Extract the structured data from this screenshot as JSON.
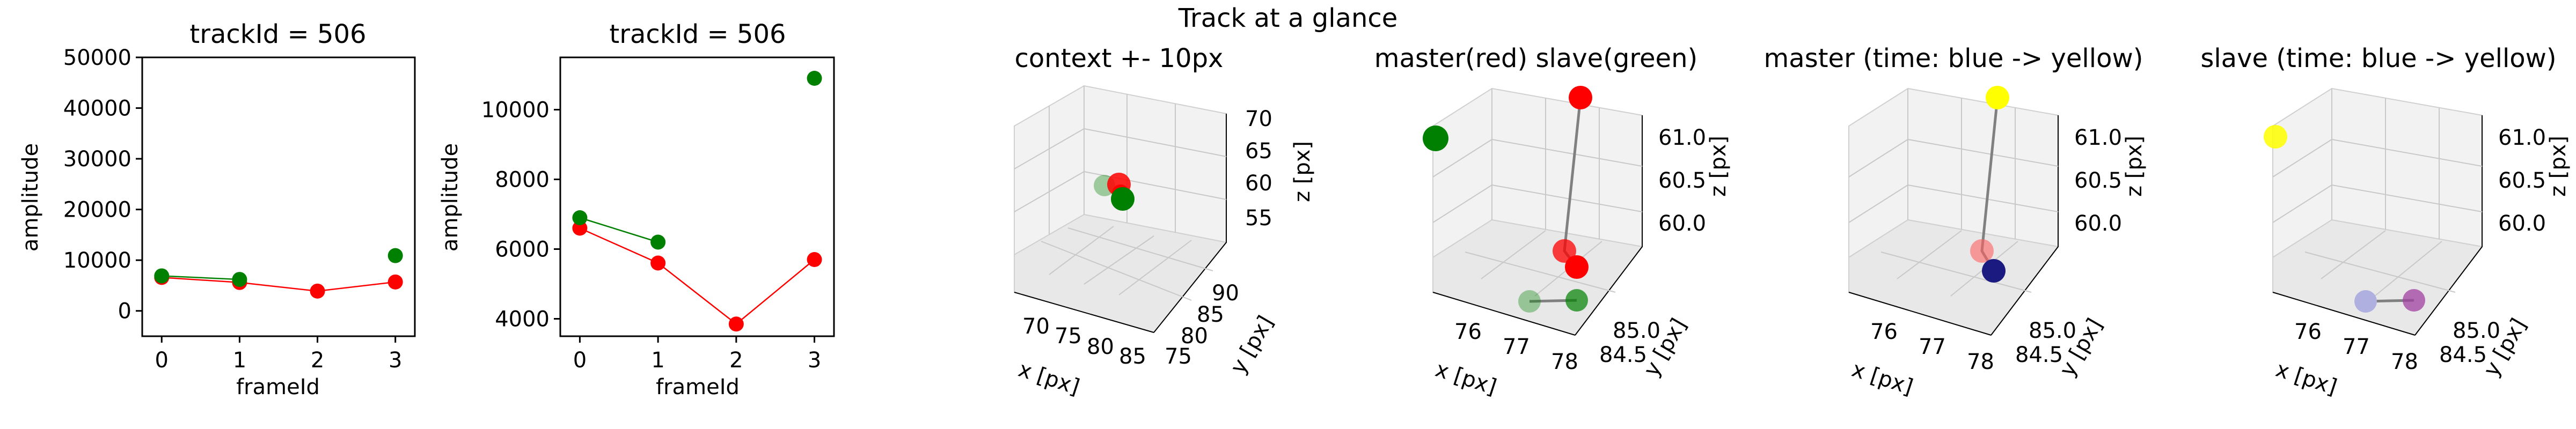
{
  "figure": {
    "suptitle": "Track at a glance"
  },
  "colors": {
    "master": "#ff0000",
    "slave": "#008000",
    "gray_line": "#808080",
    "time_start": "#1a1a80",
    "time_end": "#ffff00",
    "slave_time_start": "#b0b0e0",
    "slave_time_end": "#a040a0"
  },
  "chart_data": [
    {
      "type": "line",
      "title": "trackId = 506",
      "xlabel": "frameId",
      "ylabel": "amplitude",
      "x": [
        0,
        1,
        2,
        3
      ],
      "xlim": [
        -0.25,
        3.25
      ],
      "ylim": [
        -5000,
        50000
      ],
      "xticks": [
        "0",
        "1",
        "2",
        "3"
      ],
      "yticks": [
        "0",
        "10000",
        "20000",
        "30000",
        "40000",
        "50000"
      ],
      "series": [
        {
          "color": "#ff0000",
          "x": [
            0,
            1,
            2,
            3
          ],
          "values": [
            6600,
            5600,
            3900,
            5700
          ]
        },
        {
          "color": "#008000",
          "x": [
            0,
            1,
            3
          ],
          "values": [
            6900,
            6200,
            10900
          ],
          "line_x": [
            0,
            1
          ]
        }
      ]
    },
    {
      "type": "line",
      "title": "trackId = 506",
      "xlabel": "frameId",
      "ylabel": "amplitude",
      "x": [
        0,
        1,
        2,
        3
      ],
      "xlim": [
        -0.25,
        3.25
      ],
      "ylim": [
        3500,
        11500
      ],
      "xticks": [
        "0",
        "1",
        "2",
        "3"
      ],
      "yticks": [
        "4000",
        "6000",
        "8000",
        "10000"
      ],
      "series": [
        {
          "color": "#ff0000",
          "x": [
            0,
            1,
            2,
            3
          ],
          "values": [
            6600,
            5600,
            3850,
            5700
          ]
        },
        {
          "color": "#008000",
          "x": [
            0,
            1,
            3
          ],
          "values": [
            6900,
            6200,
            10900
          ],
          "line_x": [
            0,
            1
          ]
        }
      ]
    },
    {
      "type": "scatter",
      "title": "context +- 10px",
      "xlabel": "x [px]",
      "ylabel": "y [px]",
      "zlabel": "z [px]",
      "xticks": [
        "70",
        "75",
        "80",
        "85"
      ],
      "yticks": [
        "75",
        "80",
        "85",
        "90"
      ],
      "zticks": [
        "55",
        "60",
        "65",
        "70"
      ],
      "points": [
        {
          "x": 77,
          "y": 85,
          "z": 60.8,
          "color": "#ff0000"
        },
        {
          "x": 77.5,
          "y": 84.7,
          "z": 60.0,
          "color": "#ff0000"
        },
        {
          "x": 76,
          "y": 84.8,
          "z": 60.9,
          "color": "#008000"
        },
        {
          "x": 78,
          "y": 84.6,
          "z": 60.1,
          "color": "#008000"
        }
      ]
    },
    {
      "type": "scatter",
      "title": "master(red) slave(green)",
      "xlabel": "x [px]",
      "ylabel": "y [px]",
      "zlabel": "z [px]",
      "xticks": [
        "76",
        "77",
        "78"
      ],
      "yticks": [
        "84.5",
        "85.0"
      ],
      "zticks": [
        "60.0",
        "60.5",
        "61.0"
      ],
      "points": [
        {
          "x": 78,
          "y": 85.2,
          "z": 61.3,
          "color": "#ff0000"
        },
        {
          "x": 77.5,
          "y": 84.9,
          "z": 60.3,
          "color": "#ff0000"
        },
        {
          "x": 77.8,
          "y": 84.6,
          "z": 60.0,
          "color": "#ff0000"
        },
        {
          "x": 75.5,
          "y": 85.2,
          "z": 61.4,
          "color": "#008000"
        },
        {
          "x": 77,
          "y": 84.4,
          "z": 59.6,
          "color": "#008000"
        },
        {
          "x": 78,
          "y": 84.6,
          "z": 59.7,
          "color": "#008000"
        }
      ]
    },
    {
      "type": "scatter",
      "title": "master (time: blue -> yellow)",
      "xlabel": "x [px]",
      "ylabel": "y [px]",
      "zlabel": "z [px]",
      "xticks": [
        "76",
        "77",
        "78"
      ],
      "yticks": [
        "84.5",
        "85.0"
      ],
      "zticks": [
        "60.0",
        "60.5",
        "61.0"
      ],
      "points": [
        {
          "x": 78,
          "y": 85.2,
          "z": 61.3,
          "color": "#ffff00"
        },
        {
          "x": 77.5,
          "y": 84.9,
          "z": 60.3,
          "color": "#ff6060"
        },
        {
          "x": 77.8,
          "y": 84.6,
          "z": 60.0,
          "color": "#1a1a80"
        }
      ]
    },
    {
      "type": "scatter",
      "title": "slave (time: blue -> yellow)",
      "xlabel": "x [px]",
      "ylabel": "y [px]",
      "zlabel": "z [px]",
      "xticks": [
        "76",
        "77",
        "78"
      ],
      "yticks": [
        "84.5",
        "85.0"
      ],
      "zticks": [
        "60.0",
        "60.5",
        "61.0"
      ],
      "points": [
        {
          "x": 75.5,
          "y": 85.2,
          "z": 61.4,
          "color": "#ffff00"
        },
        {
          "x": 77,
          "y": 84.4,
          "z": 59.6,
          "color": "#b0b0e0"
        },
        {
          "x": 78,
          "y": 84.6,
          "z": 59.7,
          "color": "#a040a0"
        }
      ]
    }
  ]
}
